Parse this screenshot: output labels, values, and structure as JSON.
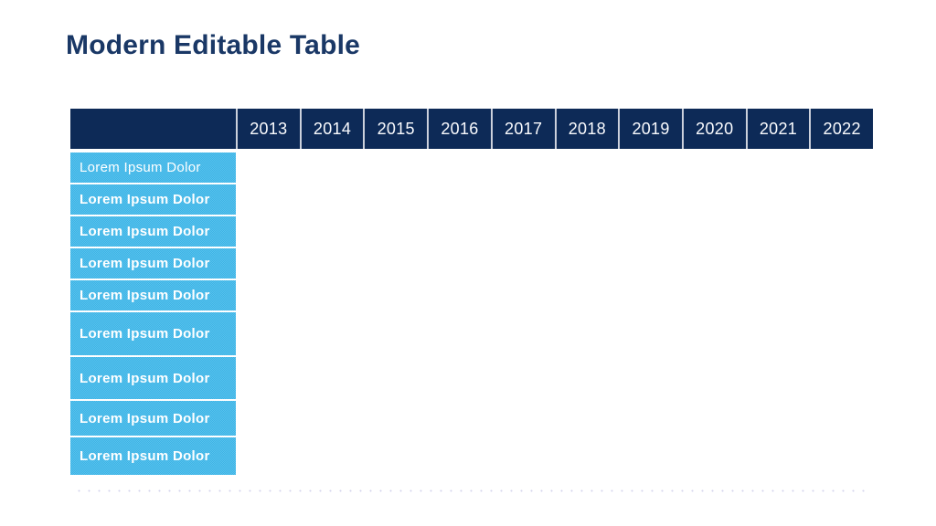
{
  "slide": {
    "title": "Modern Editable Table"
  },
  "table": {
    "corner_label": "",
    "years": [
      "2013",
      "2014",
      "2015",
      "2016",
      "2017",
      "2018",
      "2019",
      "2020",
      "2021",
      "2022"
    ],
    "rows": [
      "Lorem Ipsum Dolor",
      "Lorem Ipsum Dolor",
      "Lorem Ipsum Dolor",
      "Lorem Ipsum Dolor",
      "Lorem Ipsum Dolor",
      "Lorem Ipsum Dolor",
      "Lorem Ipsum Dolor",
      "Lorem Ipsum Dolor",
      "Lorem Ipsum Dolor"
    ]
  },
  "colors": {
    "title_text": "#1A3866",
    "header_bg": "#0D2A57",
    "header_text": "#FAFBFE",
    "row_bg": "#41B6E6",
    "row_bg_dither": "#58C2EC",
    "row_text": "#FFFFFF",
    "header_divider": "#CCD1DC",
    "dotted_line": "#D6D6EC",
    "background": "#FFFFFF"
  }
}
